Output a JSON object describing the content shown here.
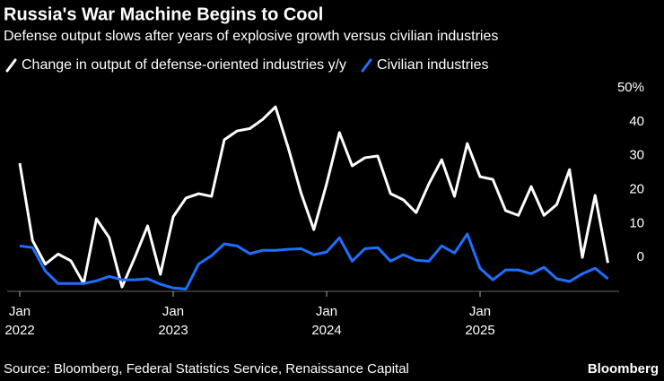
{
  "chart_data": {
    "type": "line",
    "title": "Russia's War Machine Begins to Cool",
    "subtitle": "Defense output slows after years of explosive growth versus civilian industries",
    "source": "Source: Bloomberg, Federal Statistics Service, Renaissance Capital",
    "brand": "Bloomberg",
    "x": [
      "2022-01",
      "2022-02",
      "2022-03",
      "2022-04",
      "2022-05",
      "2022-06",
      "2022-07",
      "2022-08",
      "2022-09",
      "2022-10",
      "2022-11",
      "2022-12",
      "2023-01",
      "2023-02",
      "2023-03",
      "2023-04",
      "2023-05",
      "2023-06",
      "2023-07",
      "2023-08",
      "2023-09",
      "2023-10",
      "2023-11",
      "2023-12",
      "2024-01",
      "2024-02",
      "2024-03",
      "2024-04",
      "2024-05",
      "2024-06",
      "2024-07",
      "2024-08",
      "2024-09",
      "2024-10",
      "2024-11",
      "2024-12",
      "2025-01",
      "2025-02",
      "2025-03",
      "2025-04",
      "2025-05",
      "2025-06",
      "2025-07",
      "2025-08",
      "2025-09",
      "2025-10",
      "2025-11"
    ],
    "series": [
      {
        "name": "Change in output of defense-oriented industries y/y",
        "color": "#ffffff",
        "values": [
          27.8,
          5,
          -2,
          1,
          -1,
          -7.7,
          11.4,
          5.8,
          -8.7,
          0,
          9.3,
          -5,
          12,
          17.5,
          18.8,
          18,
          34.7,
          37.3,
          38,
          40.7,
          44.4,
          32.3,
          19,
          8.2,
          21.7,
          36.8,
          27,
          29.4,
          29.9,
          18.8,
          17,
          13.2,
          21.7,
          28.8,
          18,
          33.6,
          23.8,
          23,
          13.8,
          12.4,
          20.9,
          12.4,
          15.6,
          25.9,
          0,
          18.3,
          -1.6
        ]
      },
      {
        "name": "Civilian industries",
        "color": "#1f6fff",
        "values": [
          3.4,
          2.9,
          -4,
          -7.7,
          -7.7,
          -7.7,
          -6.9,
          -5.6,
          -6.6,
          -6.6,
          -6.3,
          -7.9,
          -9,
          -9.3,
          -1.9,
          0.5,
          4,
          3.4,
          1.1,
          2.1,
          2.1,
          2.4,
          2.6,
          0.8,
          1.6,
          5.8,
          -1.1,
          2.6,
          2.9,
          -1.1,
          0.8,
          -0.8,
          -1.1,
          3.4,
          1.3,
          6.9,
          -3.2,
          -6.6,
          -3.7,
          -3.7,
          -4.8,
          -2.9,
          -6.3,
          -7.1,
          -4.8,
          -3.2,
          -6.3
        ]
      }
    ],
    "ylim": [
      -10,
      50
    ],
    "yticks": [
      0,
      10,
      20,
      30,
      40,
      {
        "value": 50,
        "label": "50%"
      }
    ],
    "xticks": [
      {
        "value": "2022-01",
        "label": [
          "Jan",
          "2022"
        ]
      },
      {
        "value": "2023-01",
        "label": [
          "Jan",
          "2023"
        ]
      },
      {
        "value": "2024-01",
        "label": [
          "Jan",
          "2024"
        ]
      },
      {
        "value": "2025-01",
        "label": [
          "Jan",
          "2025"
        ]
      }
    ],
    "grid": false
  }
}
